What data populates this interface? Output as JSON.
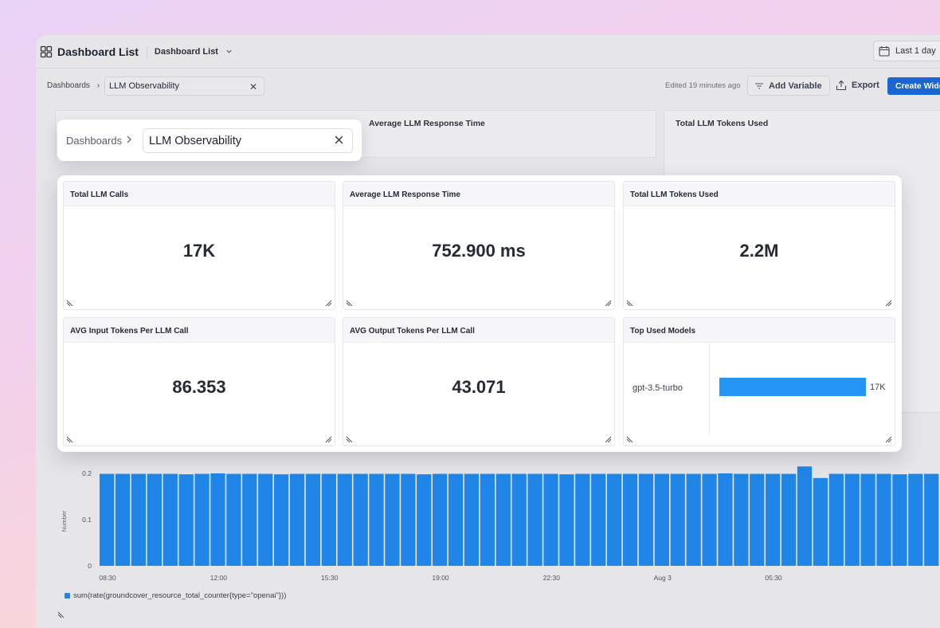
{
  "app": {
    "title": "Dashboard List",
    "dropdown_label": "Dashboard List",
    "time_range": "Last 1 day"
  },
  "subbar": {
    "breadcrumb_root": "Dashboards",
    "breadcrumb_current": "LLM Observability",
    "edited": "Edited 19 minutes ago",
    "add_variable": "Add Variable",
    "export": "Export",
    "create_widget": "Create Widget"
  },
  "background_widgets": {
    "avg_response_title": "Average LLM Response Time",
    "tokens_title": "Total LLM Tokens Used"
  },
  "overlay_breadcrumb": {
    "root": "Dashboards",
    "current": "LLM Observability"
  },
  "cards": [
    {
      "title": "Total LLM Calls",
      "value": "17K"
    },
    {
      "title": "Average LLM Response Time",
      "value": "752.900 ms"
    },
    {
      "title": "Total LLM Tokens Used",
      "value": "2.2M"
    },
    {
      "title": "AVG Input Tokens Per LLM Call",
      "value": "86.353"
    },
    {
      "title": "AVG Output Tokens Per LLM Call",
      "value": "43.071"
    },
    {
      "title": "Top Used Models",
      "model": "gpt-3.5-turbo",
      "model_value": "17K",
      "model_fraction": 1.0
    }
  ],
  "colors": {
    "accent": "#1966d2",
    "bar": "#1f86e8",
    "model_bar": "#2395f2"
  },
  "chart_data": {
    "type": "bar",
    "ylabel": "Number",
    "ylim": [
      0,
      0.2
    ],
    "yticks": [
      "0.2",
      "0.1",
      "0"
    ],
    "xticks": [
      "08:30",
      "12:00",
      "15:30",
      "19:00",
      "22:30",
      "Aug 3",
      "05:30"
    ],
    "legend": "sum(rate(groundcover_resource_total_counter{type=\"openai\"}))",
    "values": [
      0.199,
      0.199,
      0.199,
      0.199,
      0.199,
      0.198,
      0.199,
      0.2,
      0.199,
      0.199,
      0.199,
      0.198,
      0.199,
      0.199,
      0.199,
      0.199,
      0.199,
      0.199,
      0.199,
      0.199,
      0.198,
      0.199,
      0.199,
      0.199,
      0.199,
      0.199,
      0.199,
      0.199,
      0.199,
      0.198,
      0.199,
      0.199,
      0.199,
      0.199,
      0.199,
      0.199,
      0.199,
      0.199,
      0.199,
      0.2,
      0.199,
      0.199,
      0.199,
      0.199,
      0.215,
      0.19,
      0.199,
      0.199,
      0.199,
      0.199,
      0.198,
      0.199,
      0.199
    ]
  }
}
